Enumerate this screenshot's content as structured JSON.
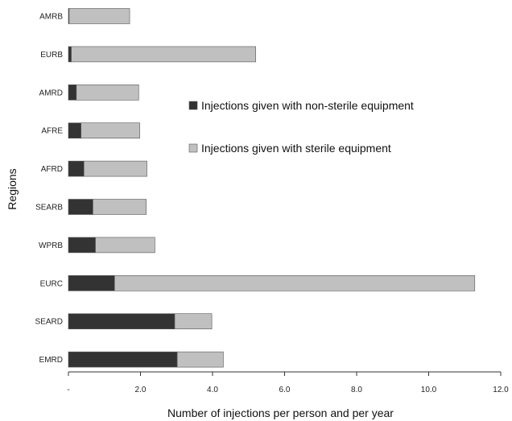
{
  "chart_data": {
    "type": "bar",
    "orientation": "horizontal",
    "stacked": true,
    "categories": [
      "AMRB",
      "EURB",
      "AMRD",
      "AFRE",
      "AFRD",
      "SEARB",
      "WPRB",
      "EURC",
      "SEARD",
      "EMRD"
    ],
    "series": [
      {
        "name": "Injections given with non-sterile equipment",
        "color": "#333333",
        "values": [
          0.02,
          0.08,
          0.22,
          0.35,
          0.43,
          0.68,
          0.75,
          1.28,
          2.95,
          3.02
        ]
      },
      {
        "name": "Injections given with sterile equipment",
        "color": "#c0c0c0",
        "values": [
          1.68,
          5.12,
          1.73,
          1.63,
          1.75,
          1.48,
          1.65,
          10.0,
          1.03,
          1.28
        ]
      }
    ],
    "xlabel": "Number of injections per person and per year",
    "ylabel": "Regions",
    "xlim": [
      0,
      12
    ],
    "x_ticks": [
      {
        "value": 0,
        "label": "-"
      },
      {
        "value": 2,
        "label": "2.0"
      },
      {
        "value": 4,
        "label": "4.0"
      },
      {
        "value": 6,
        "label": "6.0"
      },
      {
        "value": 8,
        "label": "8.0"
      },
      {
        "value": 10,
        "label": "10.0"
      },
      {
        "value": 12,
        "label": "12.0"
      }
    ],
    "grid": false,
    "legend_position": "center-right"
  }
}
